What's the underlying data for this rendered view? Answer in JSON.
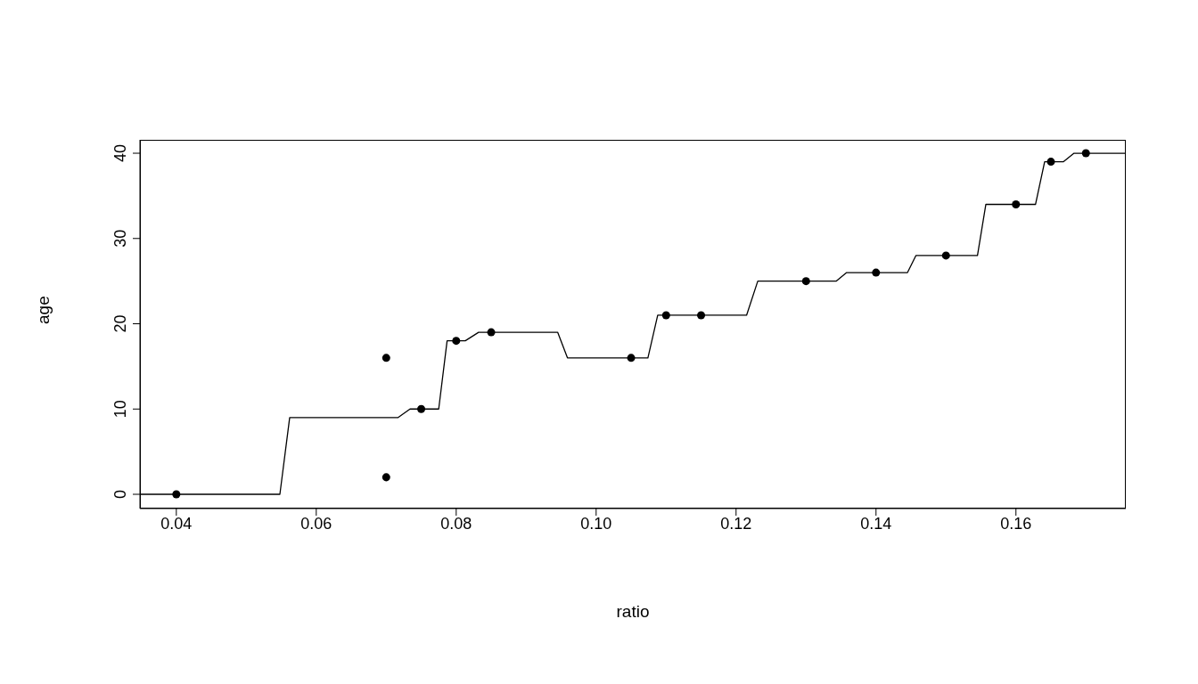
{
  "chart_data": {
    "type": "scatter",
    "xlabel": "ratio",
    "ylabel": "age",
    "xlim": [
      0.0348,
      0.1757
    ],
    "ylim": [
      -1.67,
      41.57
    ],
    "xticks": [
      {
        "value": 0.04,
        "label": "0.04"
      },
      {
        "value": 0.06,
        "label": "0.06"
      },
      {
        "value": 0.08,
        "label": "0.08"
      },
      {
        "value": 0.1,
        "label": "0.10"
      },
      {
        "value": 0.12,
        "label": "0.12"
      },
      {
        "value": 0.14,
        "label": "0.14"
      },
      {
        "value": 0.16,
        "label": "0.16"
      }
    ],
    "yticks": [
      0,
      10,
      20,
      30,
      40
    ],
    "grid": false,
    "series": [
      {
        "color": "#000000",
        "marker": "circle",
        "x": [
          0.04,
          0.07,
          0.07,
          0.075,
          0.08,
          0.085,
          0.105,
          0.11,
          0.115,
          0.13,
          0.14,
          0.15,
          0.16,
          0.165,
          0.17
        ],
        "values": [
          0,
          16,
          2,
          10,
          18,
          19,
          16,
          21,
          21,
          25,
          26,
          28,
          34,
          39,
          40
        ]
      },
      {
        "type": "line",
        "color": "#000000",
        "marker": "none",
        "line_style": "solid",
        "x": [
          0.0348,
          0.0548,
          0.0562,
          0.0717,
          0.0734,
          0.0775,
          0.0787,
          0.0813,
          0.0832,
          0.0945,
          0.0959,
          0.1074,
          0.1088,
          0.1215,
          0.1231,
          0.1343,
          0.1358,
          0.1445,
          0.1457,
          0.1545,
          0.1557,
          0.1628,
          0.1641,
          0.1668,
          0.1683,
          0.1757
        ],
        "values": [
          0,
          0,
          9,
          9,
          10,
          10,
          18,
          18,
          19,
          19,
          16,
          16,
          21,
          21,
          25,
          25,
          26,
          26,
          28,
          28,
          34,
          34,
          39,
          39,
          40,
          40
        ]
      }
    ]
  }
}
